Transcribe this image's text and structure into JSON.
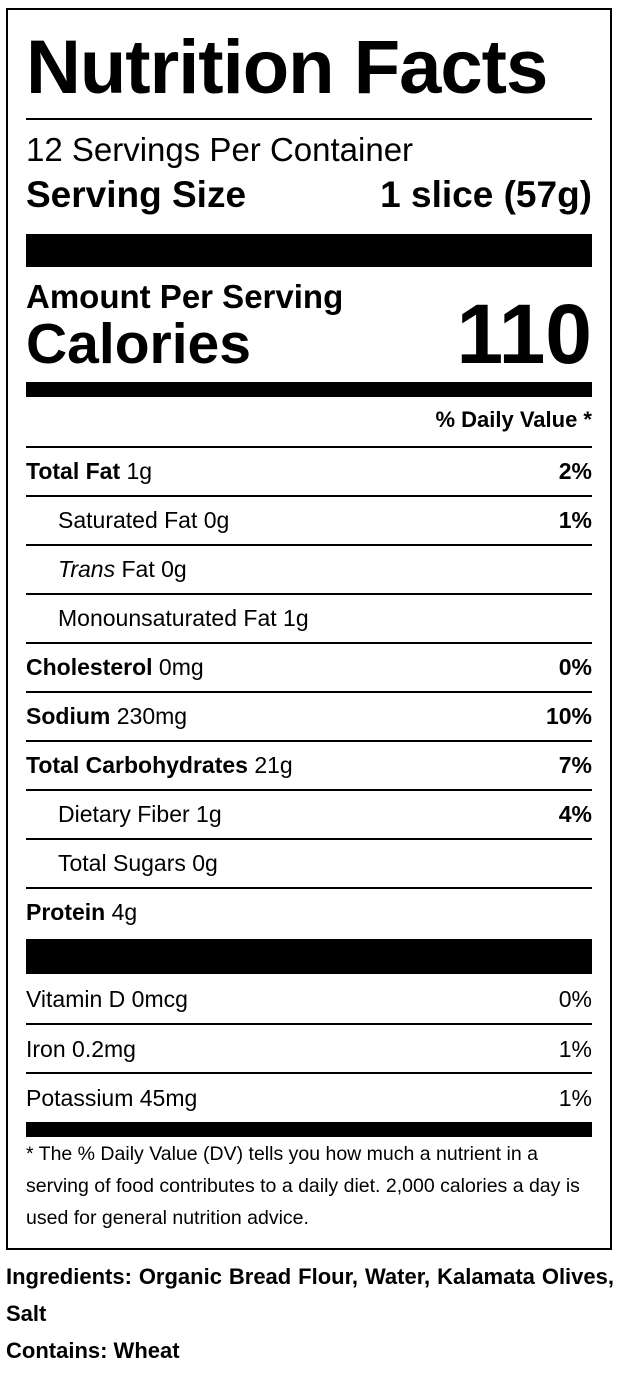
{
  "label": {
    "title": "Nutrition Facts",
    "servings_per_container": "12 Servings Per Container",
    "serving_size_label": "Serving Size",
    "serving_size_value": "1 slice (57g)",
    "amount_per_serving": "Amount Per Serving",
    "calories_label": "Calories",
    "calories_value": "110",
    "daily_value_header": "% Daily Value *",
    "nutrients": [
      {
        "name": "Total Fat",
        "amount": "1g",
        "dv": "2%"
      },
      {
        "name": "Saturated Fat",
        "amount": "0g",
        "dv": "1%"
      },
      {
        "name": "Trans",
        "name_rest": "Fat",
        "amount": "0g",
        "dv": ""
      },
      {
        "name": "Monounsaturated Fat",
        "amount": "1g",
        "dv": ""
      },
      {
        "name": "Cholesterol",
        "amount": "0mg",
        "dv": "0%"
      },
      {
        "name": "Sodium",
        "amount": "230mg",
        "dv": "10%"
      },
      {
        "name": "Total Carbohydrates",
        "amount": "21g",
        "dv": "7%"
      },
      {
        "name": "Dietary Fiber",
        "amount": "1g",
        "dv": "4%"
      },
      {
        "name": "Total Sugars",
        "amount": "0g",
        "dv": ""
      },
      {
        "name": "Protein",
        "amount": "4g",
        "dv": ""
      }
    ],
    "vitamins": [
      {
        "name": "Vitamin D",
        "amount": "0mcg",
        "dv": "0%"
      },
      {
        "name": "Iron",
        "amount": "0.2mg",
        "dv": "1%"
      },
      {
        "name": "Potassium",
        "amount": "45mg",
        "dv": "1%"
      }
    ],
    "footnote": "* The % Daily Value (DV) tells you how much a nutrient in a serving of food contributes to a daily diet. 2,000 calories a day is used for general nutrition advice."
  },
  "ingredients": "Ingredients: Organic Bread Flour, Water, Kalamata Olives, Salt",
  "contains": "Contains: Wheat"
}
